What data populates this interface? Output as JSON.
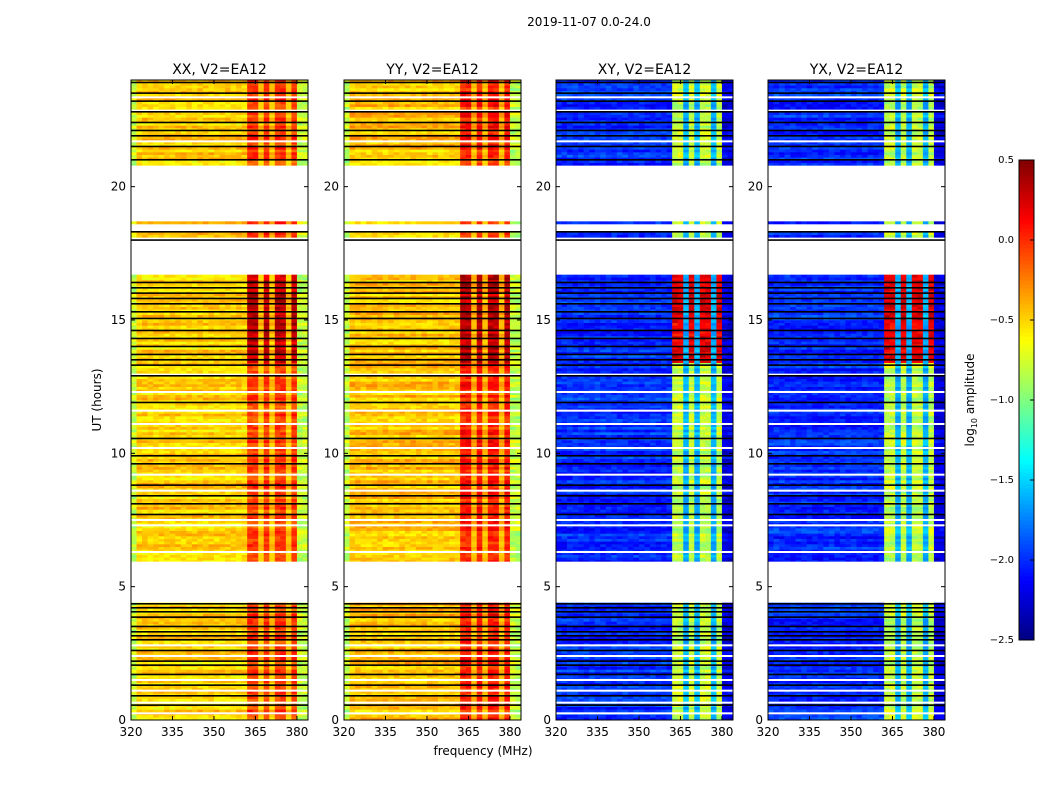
{
  "chart_data": {
    "type": "heatmap",
    "title": "2019-11-07 0.0-24.0",
    "xlabel": "frequency (MHz)",
    "ylabel": "UT (hours)",
    "xlim": [
      320,
      384
    ],
    "ylim": [
      0,
      24
    ],
    "xticks": [
      320,
      335,
      350,
      365,
      380
    ],
    "yticks": [
      0,
      5,
      10,
      15,
      20
    ],
    "colorbar": {
      "label_prefix": "log",
      "label_sub": "10",
      "label_suffix": " amplitude",
      "range": [
        -2.5,
        0.5
      ],
      "ticks": [
        "0.5",
        "0.0",
        "−0.5",
        "−1.0",
        "−1.5",
        "−2.0",
        "−2.5"
      ],
      "tick_values": [
        0.5,
        0.0,
        -0.5,
        -1.0,
        -1.5,
        -2.0,
        -2.5
      ],
      "colormap": "jet"
    },
    "data_segments_hours": [
      [
        0,
        4.45
      ],
      [
        5.85,
        16.65
      ],
      [
        18.05,
        18.25
      ],
      [
        18.55,
        18.7
      ],
      [
        20.85,
        24
      ]
    ],
    "black_rows_hours": [
      0.55,
      0.9,
      1.3,
      1.7,
      2.05,
      2.2,
      2.6,
      3.0,
      3.15,
      3.3,
      3.5,
      3.85,
      4.05,
      4.2,
      4.35,
      7.7,
      8.1,
      8.4,
      8.8,
      9.6,
      9.9,
      10.55,
      11.9,
      12.9,
      13.3,
      13.5,
      13.7,
      14.0,
      14.3,
      14.6,
      15.05,
      15.3,
      15.6,
      15.8,
      16.0,
      16.2,
      16.4,
      17.99,
      18.3,
      21.0,
      21.5,
      21.9,
      22.1,
      22.4,
      22.8,
      23.2,
      23.5,
      23.9
    ],
    "white_rows_hours": [
      0.25,
      0.65,
      1.1,
      1.5,
      2.4,
      2.8,
      5.9,
      6.3,
      7.3,
      7.5,
      8.6,
      9.2,
      10.2,
      11.1,
      11.6,
      12.3,
      12.95,
      21.7,
      22.85,
      23.35
    ],
    "subband_dividers_mhz": [
      366.5,
      371.5,
      376.5
    ],
    "strong_period_hours": [
      13.3,
      16.6
    ],
    "panels": [
      {
        "title": "XX, V2=EA12",
        "bands": [
          [
            320,
            322,
            -0.8
          ],
          [
            322,
            362,
            -0.5
          ],
          [
            362,
            380,
            -0.05
          ],
          [
            380,
            384,
            -0.8
          ]
        ],
        "divider_value": -0.45,
        "strong_delta": 0.35
      },
      {
        "title": "YY, V2=EA12",
        "bands": [
          [
            320,
            322,
            -0.8
          ],
          [
            322,
            362,
            -0.45
          ],
          [
            362,
            380,
            0.05
          ],
          [
            380,
            384,
            -0.8
          ]
        ],
        "divider_value": -0.4,
        "strong_delta": 0.3
      },
      {
        "title": "XY, V2=EA12",
        "bands": [
          [
            320,
            362,
            -2.0
          ],
          [
            362,
            380,
            -0.8
          ],
          [
            380,
            384,
            -2.2
          ]
        ],
        "divider_value": -1.6,
        "strong_delta": 1.0
      },
      {
        "title": "YX, V2=EA12",
        "bands": [
          [
            320,
            362,
            -2.0
          ],
          [
            362,
            380,
            -0.8
          ],
          [
            380,
            384,
            -2.2
          ]
        ],
        "divider_value": -1.6,
        "strong_delta": 1.0
      }
    ]
  }
}
